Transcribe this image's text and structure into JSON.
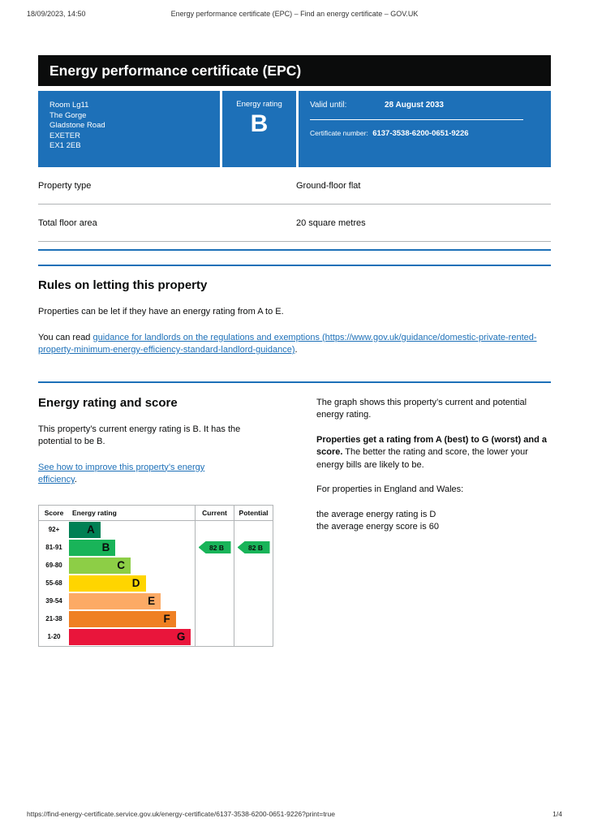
{
  "colors": {
    "govuk_blue": "#1d70b8",
    "govuk_black": "#0b0c0c",
    "border_gray": "#b1b4b6"
  },
  "print_header": {
    "datetime": "18/09/2023, 14:50",
    "document_title": "Energy performance certificate (EPC) – Find an energy certificate – GOV.UK"
  },
  "banner": {
    "title": "Energy performance certificate (EPC)"
  },
  "summary": {
    "address_lines": [
      "Room Lg11",
      "The Gorge",
      "Gladstone Road",
      "EXETER",
      "EX1 2EB"
    ],
    "rating_label": "Energy rating",
    "rating_value": "B",
    "valid_until_label": "Valid until:",
    "valid_until_value": "28 August 2033",
    "certificate_label": "Certificate number:",
    "certificate_number": "6137-3538-6200-0651-9226"
  },
  "property_details": [
    {
      "label": "Property type",
      "value": "Ground-floor flat"
    },
    {
      "label": "Total floor area",
      "value": "20 square metres"
    }
  ],
  "rules": {
    "heading": "Rules on letting this property",
    "paragraph1": "Properties can be let if they have an energy rating from A to E.",
    "paragraph2_prefix": "You can read ",
    "guidance_link": "guidance for landlords on the regulations and exemptions (https://www.gov.uk/guidance/domestic-private-rented-property-minimum-energy-efficiency-standard-landlord-guidance)",
    "paragraph2_suffix": "."
  },
  "rating_section": {
    "heading": "Energy rating and score",
    "current_rating_text": "This property’s current energy rating is B. It has the potential to be B.",
    "improve_link": "See how to improve this property’s energy efficiency",
    "improve_link_suffix": ".",
    "graph_intro": "The graph shows this property’s current and potential energy rating.",
    "explainer_bold": "Properties get a rating from A (best) to G (worst) and a score.",
    "explainer_rest": " The better the rating and score, the lower your energy bills are likely to be.",
    "averages_intro": "For properties in England and Wales:",
    "average_rating": "the average energy rating is D",
    "average_score": "the average energy score is 60"
  },
  "chart_data": {
    "type": "bar",
    "title": "Energy rating and score",
    "headers": [
      "Score",
      "Energy rating",
      "Current",
      "Potential"
    ],
    "bands": [
      {
        "score": "92+",
        "letter": "A",
        "color": "#008054",
        "width_pct": 25
      },
      {
        "score": "81-91",
        "letter": "B",
        "color": "#19b459",
        "width_pct": 37
      },
      {
        "score": "69-80",
        "letter": "C",
        "color": "#8dce46",
        "width_pct": 49
      },
      {
        "score": "55-68",
        "letter": "D",
        "color": "#ffd500",
        "width_pct": 61
      },
      {
        "score": "39-54",
        "letter": "E",
        "color": "#fcaa65",
        "width_pct": 73
      },
      {
        "score": "21-38",
        "letter": "F",
        "color": "#ef8023",
        "width_pct": 85
      },
      {
        "score": "1-20",
        "letter": "G",
        "color": "#e9153b",
        "width_pct": 97
      }
    ],
    "current": {
      "label": "82 B",
      "score": 82,
      "band": "B",
      "color": "#19b459",
      "row": 1
    },
    "potential": {
      "label": "82 B",
      "score": 82,
      "band": "B",
      "color": "#19b459",
      "row": 1
    }
  },
  "print_footer": {
    "url": "https://find-energy-certificate.service.gov.uk/energy-certificate/6137-3538-6200-0651-9226?print=true",
    "page_indicator": "1/4"
  }
}
